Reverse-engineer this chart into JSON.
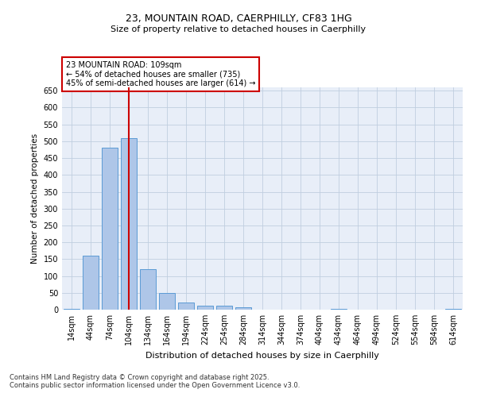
{
  "title_line1": "23, MOUNTAIN ROAD, CAERPHILLY, CF83 1HG",
  "title_line2": "Size of property relative to detached houses in Caerphilly",
  "xlabel": "Distribution of detached houses by size in Caerphilly",
  "ylabel": "Number of detached properties",
  "footnote": "Contains HM Land Registry data © Crown copyright and database right 2025.\nContains public sector information licensed under the Open Government Licence v3.0.",
  "annotation_line1": "23 MOUNTAIN ROAD: 109sqm",
  "annotation_line2": "← 54% of detached houses are smaller (735)",
  "annotation_line3": "45% of semi-detached houses are larger (614) →",
  "bar_labels": [
    "14sqm",
    "44sqm",
    "74sqm",
    "104sqm",
    "134sqm",
    "164sqm",
    "194sqm",
    "224sqm",
    "254sqm",
    "284sqm",
    "314sqm",
    "344sqm",
    "374sqm",
    "404sqm",
    "434sqm",
    "464sqm",
    "494sqm",
    "524sqm",
    "554sqm",
    "584sqm",
    "614sqm"
  ],
  "bar_values": [
    3,
    160,
    480,
    510,
    120,
    50,
    22,
    12,
    11,
    8,
    0,
    0,
    0,
    0,
    3,
    0,
    0,
    0,
    0,
    0,
    3
  ],
  "bar_color": "#aec6e8",
  "bar_edge_color": "#5b9bd5",
  "vline_x_index": 3,
  "vline_color": "#cc0000",
  "ylim": [
    0,
    660
  ],
  "yticks": [
    0,
    50,
    100,
    150,
    200,
    250,
    300,
    350,
    400,
    450,
    500,
    550,
    600,
    650
  ],
  "bg_color": "#e8eef8",
  "annotation_box_color": "#cc0000",
  "title_fontsize": 9,
  "subtitle_fontsize": 8,
  "ylabel_fontsize": 7.5,
  "xlabel_fontsize": 8,
  "tick_fontsize": 7,
  "annotation_fontsize": 7,
  "footnote_fontsize": 6
}
